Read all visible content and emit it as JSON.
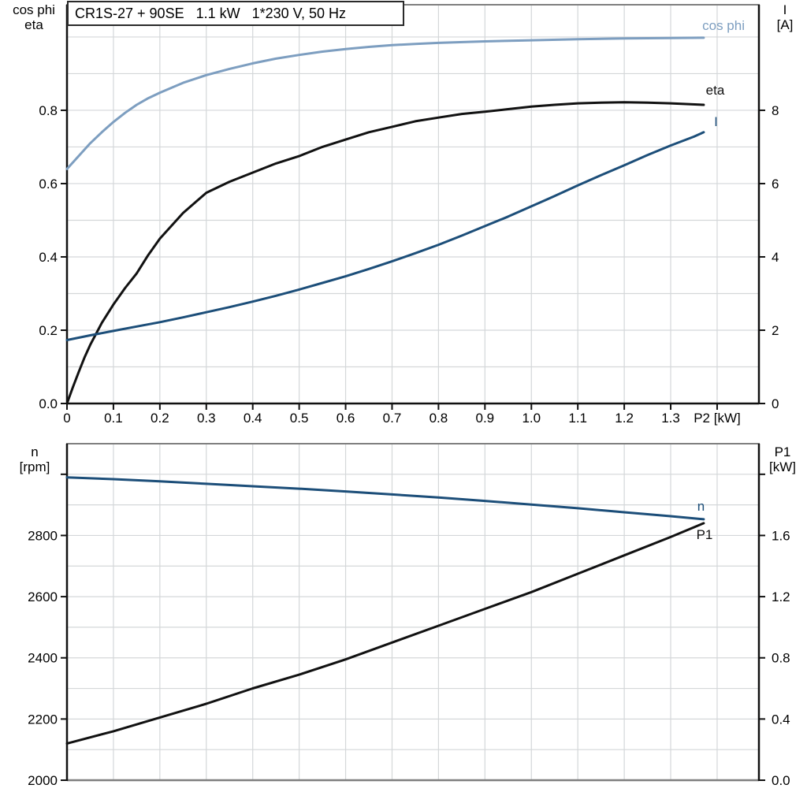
{
  "header": {
    "title": "CR1S-27 + 90SE   1.1 kW   1*230 V, 50 Hz"
  },
  "colors": {
    "light_blue": "#7d9ec0",
    "dark_blue": "#1c4e79",
    "black": "#111111",
    "grid": "#d4d7d9",
    "border_gray": "#7f7f7f",
    "background": "#ffffff"
  },
  "axis_corner_labels": {
    "top_left": [
      "cos phi",
      "eta"
    ],
    "top_right": [
      "I",
      "[A]"
    ],
    "bottom_left": [
      "n",
      "[rpm]"
    ],
    "bottom_right": [
      "P1",
      "[kW]"
    ]
  },
  "curve_labels": {
    "cos_phi": "cos phi",
    "eta": "eta",
    "current": "I",
    "speed": "n",
    "power_in": "P1"
  },
  "chart_data": [
    {
      "type": "line",
      "title": "CR1S-27 + 90SE   1.1 kW   1*230 V, 50 Hz",
      "xlabel": "P2 [kW]",
      "ylabel_left": "cos phi / eta",
      "ylabel_right": "I [A]",
      "xlim": [
        0,
        1.49
      ],
      "ylim_left": [
        0,
        1.088
      ],
      "ylim_right": [
        0,
        10.88
      ],
      "grid": true,
      "legend_position": "inline-right",
      "x_ticks": {
        "values": [
          0,
          0.1,
          0.2,
          0.3,
          0.4,
          0.5,
          0.6,
          0.7,
          0.8,
          0.9,
          1.0,
          1.1,
          1.2,
          1.3,
          1.4
        ],
        "labels": [
          "0",
          "0.1",
          "0.2",
          "0.3",
          "0.4",
          "0.5",
          "0.6",
          "0.7",
          "0.8",
          "0.9",
          "1.0",
          "1.1",
          "1.2",
          "1.3",
          "P2 [kW]"
        ]
      },
      "left_ticks": {
        "values": [
          0,
          0.2,
          0.4,
          0.6,
          0.8
        ],
        "labels": [
          "0.0",
          "0.2",
          "0.4",
          "0.6",
          "0.8"
        ]
      },
      "right_ticks": {
        "values": [
          0,
          2,
          4,
          6,
          8
        ],
        "labels": [
          "0",
          "2",
          "4",
          "6",
          "8"
        ]
      },
      "x_grid": [
        0.1,
        0.2,
        0.3,
        0.4,
        0.5,
        0.6,
        0.7,
        0.8,
        0.9,
        1.0,
        1.1,
        1.2,
        1.3,
        1.4
      ],
      "y_grid_left": [
        0.1,
        0.2,
        0.3,
        0.4,
        0.5,
        0.6,
        0.7,
        0.8,
        0.9,
        1.0
      ],
      "series": [
        {
          "name": "cos phi",
          "axis": "left",
          "color": "#7d9ec0",
          "x": [
            0,
            0.025,
            0.05,
            0.075,
            0.1,
            0.125,
            0.15,
            0.175,
            0.2,
            0.25,
            0.3,
            0.35,
            0.4,
            0.45,
            0.5,
            0.55,
            0.6,
            0.65,
            0.7,
            0.75,
            0.8,
            0.9,
            1.0,
            1.1,
            1.2,
            1.3,
            1.371
          ],
          "y": [
            0.64,
            0.675,
            0.71,
            0.74,
            0.768,
            0.793,
            0.815,
            0.833,
            0.848,
            0.875,
            0.896,
            0.913,
            0.928,
            0.941,
            0.951,
            0.96,
            0.967,
            0.973,
            0.978,
            0.981,
            0.984,
            0.988,
            0.991,
            0.994,
            0.996,
            0.997,
            0.998
          ]
        },
        {
          "name": "eta",
          "axis": "left",
          "color": "#111111",
          "x": [
            0,
            0.0125,
            0.025,
            0.0375,
            0.05,
            0.075,
            0.1,
            0.125,
            0.15,
            0.175,
            0.2,
            0.25,
            0.3,
            0.35,
            0.4,
            0.45,
            0.5,
            0.55,
            0.6,
            0.65,
            0.7,
            0.75,
            0.8,
            0.85,
            0.9,
            0.95,
            1.0,
            1.05,
            1.1,
            1.15,
            1.2,
            1.25,
            1.3,
            1.371
          ],
          "y": [
            0,
            0.044,
            0.085,
            0.125,
            0.16,
            0.22,
            0.27,
            0.315,
            0.355,
            0.405,
            0.45,
            0.52,
            0.575,
            0.605,
            0.63,
            0.655,
            0.675,
            0.7,
            0.72,
            0.74,
            0.755,
            0.77,
            0.78,
            0.79,
            0.796,
            0.803,
            0.81,
            0.815,
            0.819,
            0.821,
            0.822,
            0.821,
            0.819,
            0.815
          ]
        },
        {
          "name": "I",
          "axis": "right",
          "color": "#1c4e79",
          "x": [
            0,
            0.05,
            0.1,
            0.15,
            0.2,
            0.25,
            0.3,
            0.35,
            0.4,
            0.45,
            0.5,
            0.55,
            0.6,
            0.65,
            0.7,
            0.75,
            0.8,
            0.85,
            0.9,
            0.95,
            1.0,
            1.05,
            1.1,
            1.15,
            1.2,
            1.25,
            1.3,
            1.35,
            1.371
          ],
          "y": [
            1.73,
            1.86,
            1.98,
            2.1,
            2.22,
            2.35,
            2.49,
            2.63,
            2.78,
            2.94,
            3.11,
            3.29,
            3.47,
            3.67,
            3.88,
            4.1,
            4.33,
            4.58,
            4.84,
            5.1,
            5.38,
            5.66,
            5.95,
            6.23,
            6.5,
            6.78,
            7.04,
            7.28,
            7.4
          ]
        }
      ]
    },
    {
      "type": "line",
      "title": "",
      "xlabel": "P2 [kW]",
      "ylabel_left": "n [rpm]",
      "ylabel_right": "P1 [kW]",
      "xlim": [
        0,
        1.49
      ],
      "ylim_left": [
        2000,
        3100
      ],
      "ylim_right": [
        0,
        2.2
      ],
      "grid": true,
      "legend_position": "inline-right",
      "x_ticks": {
        "values": [],
        "labels": []
      },
      "left_ticks": {
        "values": [
          2000,
          2200,
          2400,
          2600,
          2800,
          3000
        ],
        "labels": [
          "2000",
          "2200",
          "2400",
          "2600",
          "2800",
          ""
        ]
      },
      "right_ticks": {
        "values": [
          0,
          0.4,
          0.8,
          1.2,
          1.6,
          2.0
        ],
        "labels": [
          "0.0",
          "0.4",
          "0.8",
          "1.2",
          "1.6",
          ""
        ]
      },
      "x_grid": [
        0.1,
        0.2,
        0.3,
        0.4,
        0.5,
        0.6,
        0.7,
        0.8,
        0.9,
        1.0,
        1.1,
        1.2,
        1.3,
        1.4
      ],
      "y_grid_left": [
        2100,
        2200,
        2300,
        2400,
        2500,
        2600,
        2700,
        2800,
        2900,
        3000
      ],
      "series": [
        {
          "name": "n",
          "axis": "left",
          "color": "#1c4e79",
          "x": [
            0,
            0.1,
            0.2,
            0.3,
            0.4,
            0.5,
            0.6,
            0.7,
            0.8,
            0.9,
            1.0,
            1.1,
            1.2,
            1.3,
            1.371
          ],
          "y": [
            2990,
            2984,
            2977,
            2969,
            2961,
            2953,
            2944,
            2934,
            2924,
            2913,
            2901,
            2889,
            2876,
            2863,
            2853
          ]
        },
        {
          "name": "P1",
          "axis": "right",
          "color": "#111111",
          "x": [
            0,
            0.1,
            0.2,
            0.3,
            0.4,
            0.5,
            0.6,
            0.7,
            0.8,
            0.9,
            1.0,
            1.1,
            1.2,
            1.3,
            1.371
          ],
          "y": [
            0.24,
            0.32,
            0.41,
            0.5,
            0.6,
            0.69,
            0.79,
            0.9,
            1.01,
            1.12,
            1.23,
            1.35,
            1.47,
            1.59,
            1.68
          ]
        }
      ]
    }
  ]
}
